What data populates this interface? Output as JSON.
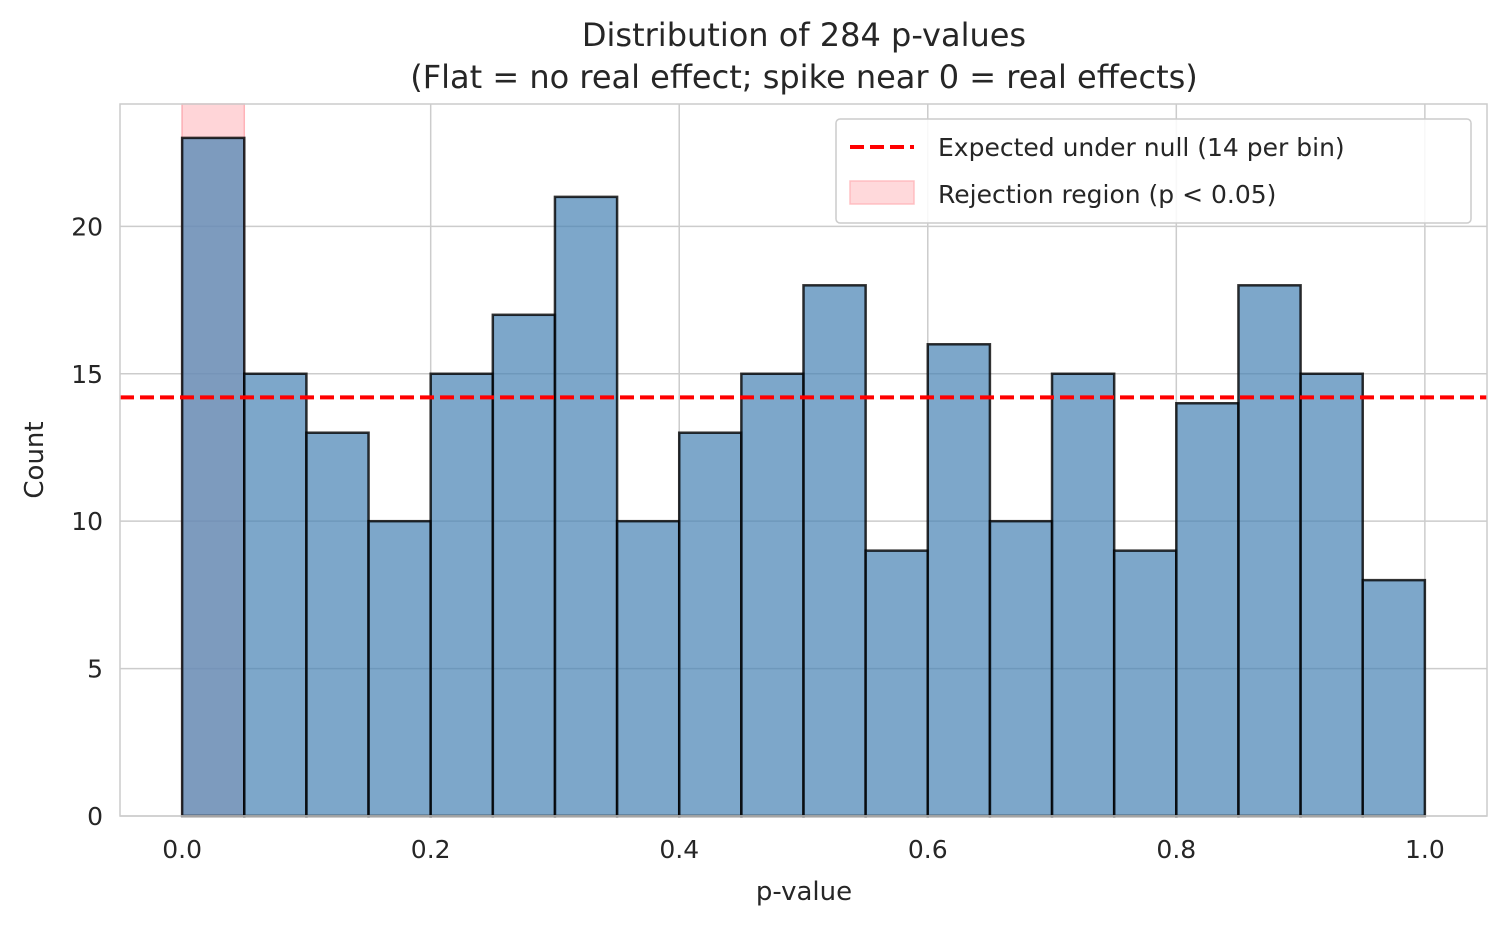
{
  "chart_data": {
    "type": "bar",
    "title_line1": "Distribution of 284 p-values",
    "title_line2": "(Flat = no real effect; spike near 0 = real effects)",
    "xlabel": "p-value",
    "ylabel": "Count",
    "xlim": [
      -0.05,
      1.05
    ],
    "ylim": [
      0,
      24.15
    ],
    "bin_edges": [
      0.0,
      0.05,
      0.1,
      0.15,
      0.2,
      0.25,
      0.3,
      0.35,
      0.4,
      0.45,
      0.5,
      0.55,
      0.6,
      0.65,
      0.7,
      0.75,
      0.8,
      0.85,
      0.9,
      0.95,
      1.0
    ],
    "values": [
      23,
      15,
      13,
      10,
      15,
      17,
      21,
      10,
      13,
      15,
      18,
      9,
      16,
      10,
      15,
      9,
      14,
      18,
      15,
      8
    ],
    "x_ticks": [
      {
        "value": 0.0,
        "label": "0.0"
      },
      {
        "value": 0.2,
        "label": "0.2"
      },
      {
        "value": 0.4,
        "label": "0.4"
      },
      {
        "value": 0.6,
        "label": "0.6"
      },
      {
        "value": 0.8,
        "label": "0.8"
      },
      {
        "value": 1.0,
        "label": "1.0"
      }
    ],
    "y_ticks": [
      {
        "value": 0,
        "label": "0"
      },
      {
        "value": 5,
        "label": "5"
      },
      {
        "value": 10,
        "label": "10"
      },
      {
        "value": 15,
        "label": "15"
      },
      {
        "value": 20,
        "label": "20"
      }
    ],
    "expected_line": {
      "value": 14.2,
      "label": "Expected under null (14 per bin)",
      "color": "#ff0000"
    },
    "rejection_region": {
      "x0": 0.0,
      "x1": 0.05,
      "label": "Rejection region (p < 0.05)",
      "color": "#ffb3b8"
    },
    "bar_color": "#4682b4",
    "legend_position": "upper right",
    "grid": true
  }
}
